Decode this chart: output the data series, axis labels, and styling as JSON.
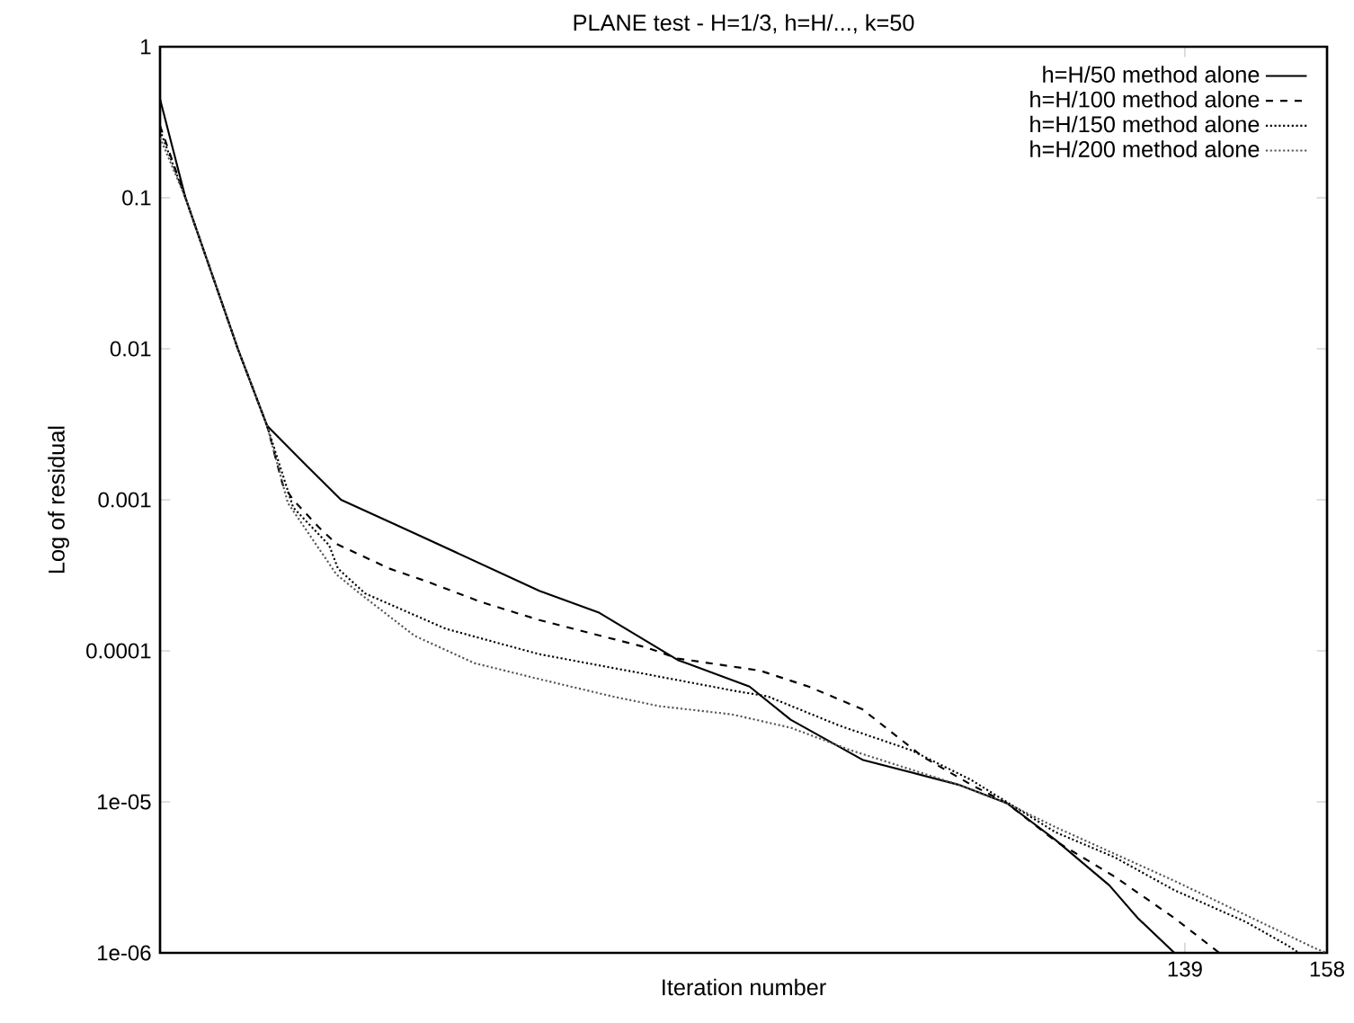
{
  "chart_data": {
    "type": "line",
    "title": "PLANE test - H=1/3, h=H/..., k=50",
    "xlabel": "Iteration number",
    "ylabel": "Log of residual",
    "log": "y",
    "legend": "top right",
    "grid": false,
    "xlim": [
      2,
      158
    ],
    "xticks": [
      139,
      158
    ],
    "ylim": [
      1e-06,
      1
    ],
    "yticks": [
      {
        "value": 1,
        "label": "1"
      },
      {
        "value": 0.1,
        "label": "0.1"
      },
      {
        "value": 0.01,
        "label": "0.01"
      },
      {
        "value": 0.001,
        "label": "0.001"
      },
      {
        "value": 0.0001,
        "label": "0.0001"
      },
      {
        "value": 1e-05,
        "label": "1e-05"
      },
      {
        "value": 1e-06,
        "label": "1e-06"
      }
    ],
    "series": [
      {
        "name": "h=H/50  method alone",
        "color": "#000000",
        "line_style": "solid",
        "x": [
          2,
          5.4,
          12.4,
          16.3,
          21.5,
          26.2,
          35.1,
          52.7,
          60.6,
          71.2,
          80.8,
          86.3,
          95.9,
          108.7,
          115.2,
          121.7,
          128.9,
          132.7,
          137.6
        ],
        "values": [
          0.45,
          0.1,
          0.01,
          0.0031,
          0.0017,
          0.001,
          0.00063,
          0.00025,
          0.00018,
          8.7e-05,
          5.8e-05,
          3.5e-05,
          1.9e-05,
          1.3e-05,
          9.8e-06,
          5.6e-06,
          2.8e-06,
          1.7e-06,
          1e-06
        ]
      },
      {
        "name": "h=H/100  method alone",
        "color": "#000000",
        "line_style": "dashed",
        "x": [
          2,
          5.4,
          12.4,
          16.3,
          18.4,
          19.8,
          23.2,
          25.6,
          32.7,
          37.5,
          45,
          52.7,
          67.1,
          71.2,
          82.2,
          88.7,
          95.9,
          103.9,
          110.4,
          115.2,
          121.7,
          129.6,
          137.6,
          143.6
        ],
        "values": [
          0.3,
          0.1,
          0.01,
          0.0031,
          0.00126,
          0.001,
          0.00066,
          0.00051,
          0.00035,
          0.00029,
          0.00021,
          0.00016,
          0.000105,
          8.9e-05,
          7.4e-05,
          5.8e-05,
          4.1e-05,
          2e-05,
          1.3e-05,
          9.8e-06,
          5.5e-06,
          3.2e-06,
          1.7e-06,
          1e-06
        ]
      },
      {
        "name": "h=H/150  method alone",
        "color": "#000000",
        "line_style": "dotted",
        "x": [
          2,
          5.4,
          12.4,
          16.3,
          19.8,
          24.6,
          25.8,
          29.4,
          40.2,
          52.7,
          66.4,
          79.1,
          83.2,
          92.8,
          102.4,
          110.4,
          121.7,
          129.6,
          137.6,
          147.2,
          153,
          154.2
        ],
        "values": [
          0.28,
          0.1,
          0.01,
          0.0031,
          0.00089,
          0.0005,
          0.00035,
          0.00024,
          0.00014,
          9.5e-05,
          7.1e-05,
          5.4e-05,
          5e-05,
          3.2e-05,
          2.2e-05,
          1.4e-05,
          6.3e-06,
          4.3e-06,
          2.6e-06,
          1.6e-06,
          1.1e-06,
          1e-06
        ]
      },
      {
        "name": "h=H/200  method alone",
        "color": "#555555",
        "line_style": "dotted",
        "x": [
          2,
          5.4,
          12.4,
          16.3,
          19.1,
          25.6,
          28.7,
          36,
          44,
          52.7,
          62.4,
          68.8,
          78.4,
          86.3,
          94.3,
          108.7,
          115.2,
          121.7,
          137.6,
          156.8,
          158
        ],
        "values": [
          0.25,
          0.1,
          0.01,
          0.0031,
          0.00095,
          0.00032,
          0.00024,
          0.000126,
          8.3e-05,
          6.5e-05,
          5e-05,
          4.3e-05,
          3.8e-05,
          3.1e-05,
          2.2e-05,
          1.3e-05,
          9.8e-06,
          6.8e-06,
          3e-06,
          1.05e-06,
          1e-06
        ]
      }
    ]
  }
}
